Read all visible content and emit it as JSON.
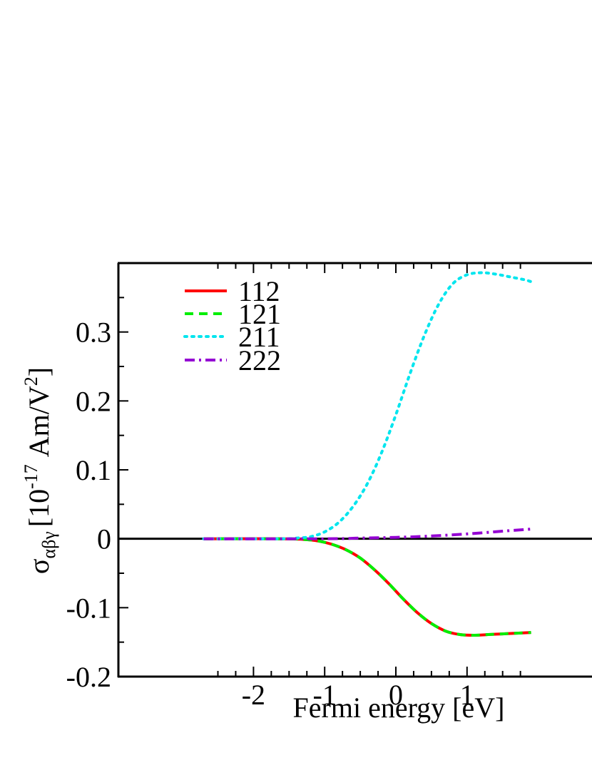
{
  "chart_data": {
    "type": "line",
    "title": "",
    "xlabel": "Fermi energy [eV]",
    "ylabel": {
      "symbol": "σ",
      "subscript": "αβγ",
      "unit_open": "[10",
      "exponent": "-17",
      "unit_mid": " Am/V",
      "unit_exp": "2",
      "unit_close": "]"
    },
    "xlim": [
      -2.7,
      1.9
    ],
    "ylim": [
      -0.2,
      0.4
    ],
    "xticks": [
      -2,
      -1,
      0,
      1
    ],
    "xtick_labels": [
      "-2",
      "-1",
      "0",
      "1"
    ],
    "yticks": [
      -0.2,
      -0.1,
      0,
      0.1,
      0.2,
      0.3
    ],
    "ytick_labels": [
      "-0.2",
      "-0.1",
      "0",
      "0.1",
      "0.2",
      "0.3"
    ],
    "zero_line": true,
    "grid": false,
    "legend_position": "top-left",
    "series": [
      {
        "name": "112",
        "color": "#ff0000",
        "dash": "solid",
        "x": [
          -2.7,
          -1.6,
          -1.3,
          -1.1,
          -0.9,
          -0.7,
          -0.5,
          -0.3,
          -0.1,
          0.1,
          0.3,
          0.5,
          0.7,
          0.9,
          1.1,
          1.3,
          1.5,
          1.7,
          1.9
        ],
        "y": [
          0.0,
          0.0,
          -0.001,
          -0.003,
          -0.008,
          -0.016,
          -0.028,
          -0.045,
          -0.065,
          -0.087,
          -0.107,
          -0.123,
          -0.134,
          -0.139,
          -0.14,
          -0.139,
          -0.138,
          -0.137,
          -0.136
        ]
      },
      {
        "name": "121",
        "color": "#00ee00",
        "dash": "dashed",
        "x": [
          -2.7,
          -1.6,
          -1.3,
          -1.1,
          -0.9,
          -0.7,
          -0.5,
          -0.3,
          -0.1,
          0.1,
          0.3,
          0.5,
          0.7,
          0.9,
          1.1,
          1.3,
          1.5,
          1.7,
          1.9
        ],
        "y": [
          0.0,
          0.0,
          -0.001,
          -0.003,
          -0.008,
          -0.016,
          -0.028,
          -0.045,
          -0.065,
          -0.087,
          -0.107,
          -0.123,
          -0.134,
          -0.139,
          -0.14,
          -0.139,
          -0.138,
          -0.137,
          -0.136
        ]
      },
      {
        "name": "211",
        "color": "#00e5ee",
        "dash": "dotted",
        "x": [
          -2.7,
          -1.6,
          -1.4,
          -1.2,
          -1.0,
          -0.8,
          -0.6,
          -0.4,
          -0.2,
          0.0,
          0.2,
          0.4,
          0.6,
          0.8,
          1.0,
          1.2,
          1.4,
          1.6,
          1.8,
          1.9
        ],
        "y": [
          0.0,
          0.0,
          0.001,
          0.003,
          0.01,
          0.024,
          0.047,
          0.08,
          0.125,
          0.18,
          0.24,
          0.295,
          0.34,
          0.37,
          0.383,
          0.386,
          0.384,
          0.38,
          0.376,
          0.373
        ]
      },
      {
        "name": "222",
        "color": "#9400d3",
        "dash": "dashdot",
        "x": [
          -2.7,
          -1.0,
          -0.5,
          0.0,
          0.5,
          1.0,
          1.5,
          1.9
        ],
        "y": [
          0.0,
          0.0,
          0.001,
          0.002,
          0.004,
          0.007,
          0.011,
          0.014
        ]
      }
    ]
  }
}
